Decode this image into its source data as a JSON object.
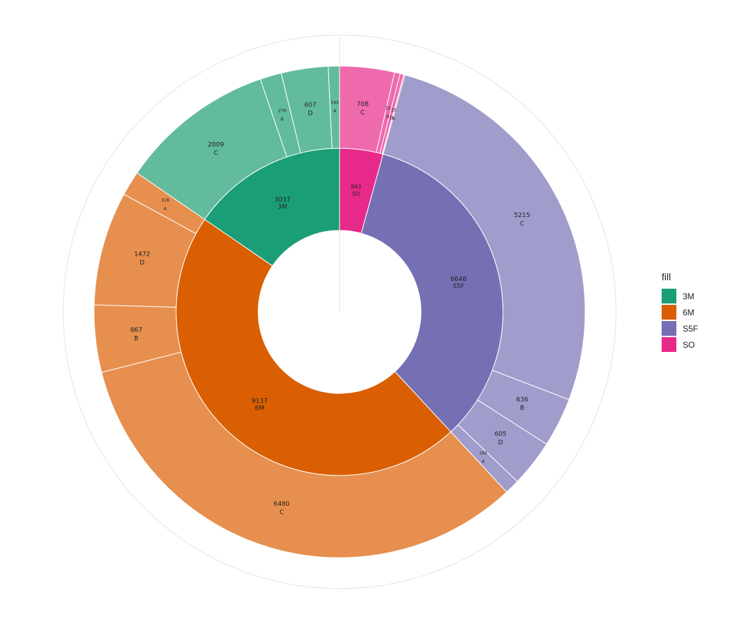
{
  "chart_data": {
    "type": "pie",
    "subtype": "sunburst",
    "grid": true,
    "legend_position": "right",
    "legend": {
      "title": "fill",
      "items": [
        {
          "label": "3M",
          "color": "#1B9E77"
        },
        {
          "label": "6M",
          "color": "#D95F02"
        },
        {
          "label": "S5F",
          "color": "#7570B3"
        },
        {
          "label": "SO",
          "color": "#E7298A"
        }
      ]
    },
    "inner_ring": [
      {
        "label": "SO",
        "value": 843,
        "value_label": "843",
        "color": "#E7298A"
      },
      {
        "label": "S5F",
        "value": 6648,
        "value_label": "6648",
        "color": "#7570B3"
      },
      {
        "label": "6M",
        "value": 9137,
        "value_label": "9137",
        "color": "#D95F02"
      },
      {
        "label": "3M",
        "value": 3037,
        "value_label": "3037",
        "color": "#1B9E77"
      }
    ],
    "outer_ring": [
      {
        "parent": "SO",
        "label": "C",
        "value": 708,
        "value_label": "708",
        "color": "#EE6AAD"
      },
      {
        "parent": "SO",
        "label": "B",
        "value": 72,
        "value_label": "72",
        "color": "#EE6AAD"
      },
      {
        "parent": "SO",
        "label": "D",
        "value": 48,
        "value_label": "",
        "color": "#EE6AAD"
      },
      {
        "parent": "SO",
        "label": "A",
        "value": 15,
        "value_label": "15",
        "color": "#EE6AAD"
      },
      {
        "parent": "S5F",
        "label": "C",
        "value": 5215,
        "value_label": "5215",
        "color": "#A09CCB"
      },
      {
        "parent": "S5F",
        "label": "B",
        "value": 636,
        "value_label": "636",
        "color": "#A09CCB"
      },
      {
        "parent": "S5F",
        "label": "D",
        "value": 605,
        "value_label": "605",
        "color": "#A09CCB"
      },
      {
        "parent": "S5F",
        "label": "A",
        "value": 192,
        "value_label": "192",
        "color": "#A09CCB"
      },
      {
        "parent": "6M",
        "label": "C",
        "value": 6480,
        "value_label": "6480",
        "color": "#E68F4E"
      },
      {
        "parent": "6M",
        "label": "B",
        "value": 867,
        "value_label": "867",
        "color": "#E68F4E"
      },
      {
        "parent": "6M",
        "label": "D",
        "value": 1472,
        "value_label": "1472",
        "color": "#E68F4E"
      },
      {
        "parent": "6M",
        "label": "A",
        "value": 318,
        "value_label": "318",
        "color": "#E68F4E"
      },
      {
        "parent": "3M",
        "label": "C",
        "value": 2009,
        "value_label": "2009",
        "color": "#62BB9D"
      },
      {
        "parent": "3M",
        "label": "B",
        "value": 276,
        "value_label": "276",
        "color": "#62BB9D"
      },
      {
        "parent": "3M",
        "label": "D",
        "value": 607,
        "value_label": "607",
        "color": "#62BB9D"
      },
      {
        "parent": "3M",
        "label": "A",
        "value": 145,
        "value_label": "145",
        "color": "#62BB9D"
      }
    ]
  }
}
